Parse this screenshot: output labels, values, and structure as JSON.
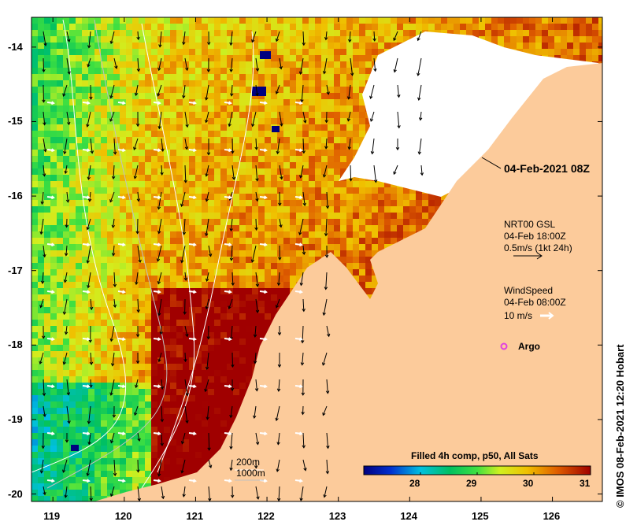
{
  "map": {
    "title": "04-Feb-2021 08Z",
    "lat_ticks": [
      "-14",
      "-15",
      "-16",
      "-17",
      "-18",
      "-19",
      "-20"
    ],
    "lon_ticks": [
      "119",
      "120",
      "121",
      "122",
      "123",
      "124",
      "125",
      "126"
    ],
    "lat_range": [
      -20.1,
      -13.6
    ],
    "lon_range": [
      118.7,
      126.7
    ]
  },
  "legend": {
    "currents_source": "NRT00 GSL",
    "currents_time": "04-Feb 18:00Z",
    "currents_scale": "0.5m/s (1kt 24h)",
    "wind_label": "WindSpeed",
    "wind_time": "04-Feb 08:00Z",
    "wind_scale": "10 m/s",
    "argo_label": "Argo",
    "isobath_1": "200m",
    "isobath_2": "1000m"
  },
  "colorbar": {
    "title": "Filled 4h comp, p50, All Sats",
    "ticks": [
      "28",
      "29",
      "30",
      "31"
    ],
    "range": [
      27,
      31
    ]
  },
  "credit": "© IMOS 08-Feb-2021 12:20 Hobart",
  "colors": {
    "land": "#fccb9b",
    "cloud": "#ffffff",
    "argo": "#e040e0",
    "current_arrow": "#000000",
    "wind_arrow": "#ffffff"
  }
}
